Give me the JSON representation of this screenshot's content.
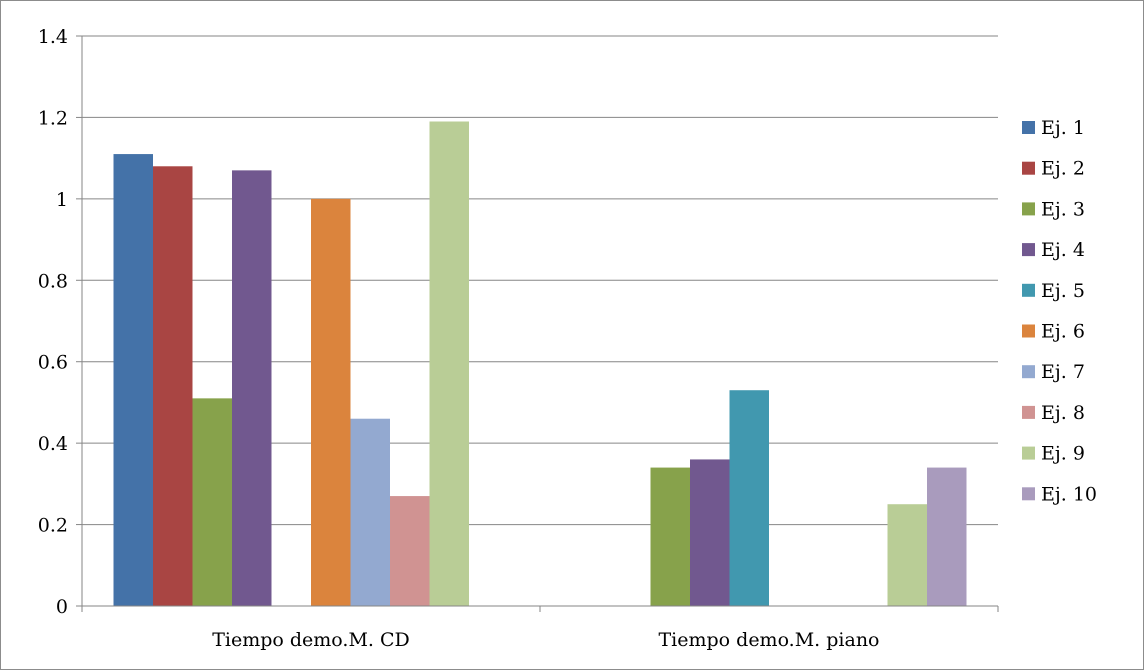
{
  "chart_data": {
    "type": "bar",
    "categories": [
      "Tiempo demo.M. CD",
      "Tiempo demo.M. piano"
    ],
    "series": [
      {
        "name": "Ej. 1",
        "color": "#4472A8",
        "values": [
          1.11,
          0
        ]
      },
      {
        "name": "Ej. 2",
        "color": "#A94543",
        "values": [
          1.08,
          0
        ]
      },
      {
        "name": "Ej. 3",
        "color": "#87A24B",
        "values": [
          0.51,
          0.34
        ]
      },
      {
        "name": "Ej. 4",
        "color": "#71588F",
        "values": [
          1.07,
          0.36
        ]
      },
      {
        "name": "Ej. 5",
        "color": "#4198AF",
        "values": [
          0,
          0.53
        ]
      },
      {
        "name": "Ej. 6",
        "color": "#DB843D",
        "values": [
          1.0,
          0
        ]
      },
      {
        "name": "Ej. 7",
        "color": "#93A9D0",
        "values": [
          0.46,
          0
        ]
      },
      {
        "name": "Ej. 8",
        "color": "#D09392",
        "values": [
          0.27,
          0
        ]
      },
      {
        "name": "Ej. 9",
        "color": "#B9CD96",
        "values": [
          1.19,
          0.25
        ]
      },
      {
        "name": "Ej. 10",
        "color": "#A99BBD",
        "values": [
          0,
          0.34
        ]
      }
    ],
    "yticks": [
      "0",
      "0.2",
      "0.4",
      "0.6",
      "0.8",
      "1",
      "1.2",
      "1.4"
    ],
    "ylim": [
      0,
      1.4
    ],
    "grid": true,
    "legend": "right"
  }
}
